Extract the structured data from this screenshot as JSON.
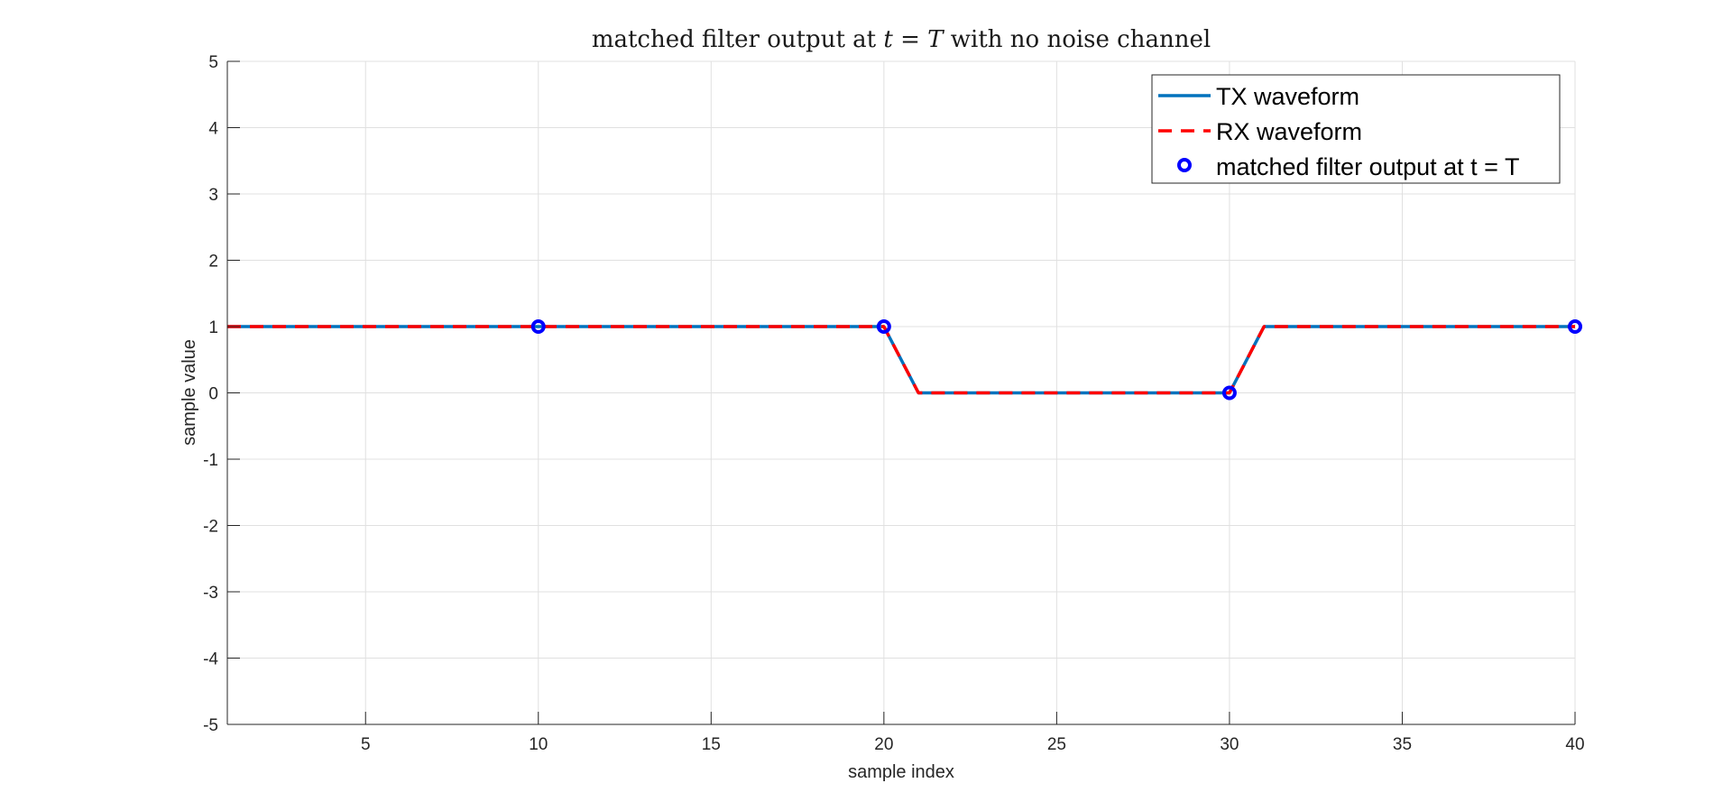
{
  "chart_data": {
    "type": "line",
    "title_parts": [
      {
        "text": "matched filter output at ",
        "math": false
      },
      {
        "text": "t",
        "math": true
      },
      {
        "text": " = ",
        "math": false
      },
      {
        "text": "T",
        "math": true
      },
      {
        "text": " with no noise channel",
        "math": false
      }
    ],
    "xlabel": "sample index",
    "ylabel": "sample value",
    "xlim": [
      1,
      40
    ],
    "ylim": [
      -5,
      5
    ],
    "xticks": [
      5,
      10,
      15,
      20,
      25,
      30,
      35,
      40
    ],
    "yticks": [
      -5,
      -4,
      -3,
      -2,
      -1,
      0,
      1,
      2,
      3,
      4,
      5
    ],
    "grid": true,
    "legend_position": "top-right",
    "series": [
      {
        "name": "TX waveform",
        "style": "solid",
        "color": "#0072BD",
        "x": [
          1,
          2,
          3,
          4,
          5,
          6,
          7,
          8,
          9,
          10,
          11,
          12,
          13,
          14,
          15,
          16,
          17,
          18,
          19,
          20,
          21,
          22,
          23,
          24,
          25,
          26,
          27,
          28,
          29,
          30,
          31,
          32,
          33,
          34,
          35,
          36,
          37,
          38,
          39,
          40
        ],
        "y": [
          1,
          1,
          1,
          1,
          1,
          1,
          1,
          1,
          1,
          1,
          1,
          1,
          1,
          1,
          1,
          1,
          1,
          1,
          1,
          1,
          0,
          0,
          0,
          0,
          0,
          0,
          0,
          0,
          0,
          0,
          1,
          1,
          1,
          1,
          1,
          1,
          1,
          1,
          1,
          1
        ]
      },
      {
        "name": "RX waveform",
        "style": "dashed",
        "color": "#FF0000",
        "x": [
          1,
          2,
          3,
          4,
          5,
          6,
          7,
          8,
          9,
          10,
          11,
          12,
          13,
          14,
          15,
          16,
          17,
          18,
          19,
          20,
          21,
          22,
          23,
          24,
          25,
          26,
          27,
          28,
          29,
          30,
          31,
          32,
          33,
          34,
          35,
          36,
          37,
          38,
          39,
          40
        ],
        "y": [
          1,
          1,
          1,
          1,
          1,
          1,
          1,
          1,
          1,
          1,
          1,
          1,
          1,
          1,
          1,
          1,
          1,
          1,
          1,
          1,
          0,
          0,
          0,
          0,
          0,
          0,
          0,
          0,
          0,
          0,
          1,
          1,
          1,
          1,
          1,
          1,
          1,
          1,
          1,
          1
        ]
      },
      {
        "name": "matched filter output at t = T",
        "style": "markers",
        "color": "#0000FF",
        "x": [
          10,
          20,
          30,
          40
        ],
        "y": [
          1,
          1,
          0,
          1
        ]
      }
    ]
  }
}
